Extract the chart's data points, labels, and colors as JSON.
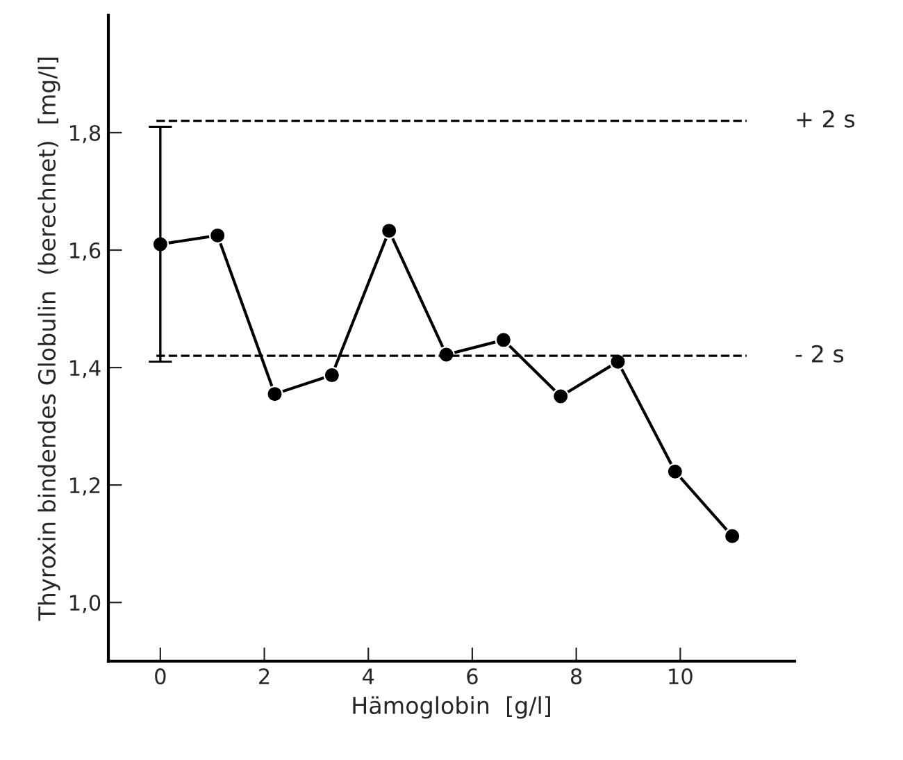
{
  "chart_data": {
    "type": "line",
    "xlabel": "Hämoglobin  [g/l]",
    "ylabel": "Thyroxin bindendes Globulin  (berechnet)  [mg/l]",
    "x": [
      0,
      1.1,
      2.2,
      3.3,
      4.4,
      5.5,
      6.6,
      7.7,
      8.8,
      9.9,
      11.0
    ],
    "series": [
      {
        "color": "#000000",
        "values": [
          1.61,
          1.625,
          1.355,
          1.387,
          1.633,
          1.422,
          1.447,
          1.351,
          1.41,
          1.223,
          1.113
        ],
        "errors": [
          0.2,
          null,
          null,
          null,
          null,
          null,
          null,
          null,
          null,
          null,
          null
        ]
      }
    ],
    "xlim": [
      -1.0,
      12.2
    ],
    "xticks": [
      0,
      2,
      4,
      6,
      8,
      10
    ],
    "ylim": [
      0.9,
      2.0
    ],
    "yticks": [
      {
        "value": 1.0,
        "label": "1,0"
      },
      {
        "value": 1.2,
        "label": "1,2"
      },
      {
        "value": 1.4,
        "label": "1,4"
      },
      {
        "value": 1.6,
        "label": "1,6"
      },
      {
        "value": 1.8,
        "label": "1,8"
      }
    ],
    "ref_lines": [
      {
        "axis": "y",
        "value": 1.82,
        "label": "+ 2 s",
        "line_style": "dashed",
        "color": "#000000"
      },
      {
        "axis": "y",
        "value": 1.42,
        "label": "- 2 s",
        "line_style": "dashed",
        "color": "#000000"
      }
    ],
    "marker": "circle",
    "line_style": "solid",
    "grid": false,
    "legend": false
  }
}
